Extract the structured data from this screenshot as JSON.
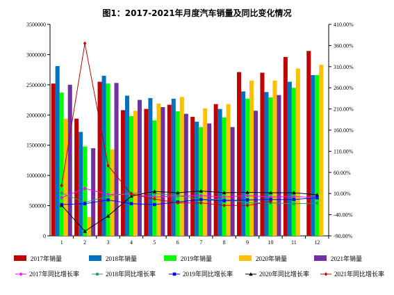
{
  "chart_data": {
    "type": "bar",
    "title": "图1：2017-2021年月度汽车销量及同比变化情况",
    "categories": [
      "1",
      "2",
      "3",
      "4",
      "5",
      "6",
      "7",
      "8",
      "9",
      "10",
      "11",
      "12"
    ],
    "y_left": {
      "ylim": [
        0,
        3500000
      ],
      "ticks": [
        "0",
        "500000",
        "1000000",
        "1500000",
        "2000000",
        "2500000",
        "3000000",
        "3500000"
      ]
    },
    "y_right": {
      "ylim": [
        -90,
        410
      ],
      "ticks": [
        "-90.00%",
        "-40.00%",
        "10.00%",
        "60.00%",
        "110.00%",
        "160.00%",
        "210.00%",
        "260.00%",
        "310.00%",
        "360.00%",
        "410.00%"
      ]
    },
    "bar_series": [
      {
        "name": "2017年销量",
        "color": "#C00000",
        "values": [
          2520000,
          1940000,
          2550000,
          2080000,
          2100000,
          2170000,
          1970000,
          2180000,
          2710000,
          2700000,
          2960000,
          3060000
        ]
      },
      {
        "name": "2018年销量",
        "color": "#0070C0",
        "values": [
          2810000,
          1720000,
          2650000,
          2320000,
          2280000,
          2270000,
          1890000,
          2100000,
          2390000,
          2380000,
          2550000,
          2660000
        ]
      },
      {
        "name": "2019年销量",
        "color": "#00FF00",
        "values": [
          2370000,
          1480000,
          2520000,
          1980000,
          1910000,
          2060000,
          1800000,
          1960000,
          2270000,
          2290000,
          2450000,
          2660000
        ]
      },
      {
        "name": "2020年销量",
        "color": "#FFC000",
        "values": [
          1940000,
          310000,
          1430000,
          2070000,
          2190000,
          2300000,
          2110000,
          2180000,
          2570000,
          2570000,
          2770000,
          2830000
        ]
      },
      {
        "name": "2021年销量",
        "color": "#7030A0",
        "values": [
          2500000,
          1450000,
          2530000,
          2250000,
          2130000,
          2020000,
          1860000,
          1800000,
          2070000,
          2330000,
          0,
          0
        ]
      }
    ],
    "line_series": [
      {
        "name": "2017年同比增长率",
        "color": "#FF00FF",
        "marker": "diamond",
        "values": [
          0.2,
          22.0,
          8.0,
          8.0,
          2.0,
          4.0,
          5.0,
          2.0,
          5.0,
          2.0,
          3.0,
          0.5
        ]
      },
      {
        "name": "2018年同比增长率",
        "color": "#339966",
        "marker": "circle",
        "values": [
          11.0,
          -11.0,
          4.0,
          11.0,
          10.0,
          5.0,
          -4.0,
          -3.0,
          -12.0,
          -12.0,
          -14.0,
          -13.0
        ]
      },
      {
        "name": "2019年同比增长率",
        "color": "#0000FF",
        "marker": "square",
        "values": [
          -16.0,
          -14.0,
          -5.0,
          -14.0,
          -16.0,
          -10.0,
          -4.0,
          -7.0,
          -5.0,
          -4.0,
          -4.0,
          0.0
        ]
      },
      {
        "name": "2020年同比增长率",
        "color": "#000000",
        "marker": "triangle",
        "values": [
          -18.0,
          -79.0,
          -43.0,
          4.0,
          15.0,
          12.0,
          16.0,
          12.0,
          13.0,
          12.0,
          12.0,
          7.0
        ]
      },
      {
        "name": "2021年同比增长率",
        "color": "#C00000",
        "marker": "diamond",
        "values": [
          29.0,
          365.0,
          76.0,
          9.0,
          -3.0,
          -12.0,
          -12.0,
          -18.0,
          -18.0,
          -9.0,
          null,
          null
        ]
      }
    ],
    "legend_position": "bottom",
    "grid": false
  }
}
